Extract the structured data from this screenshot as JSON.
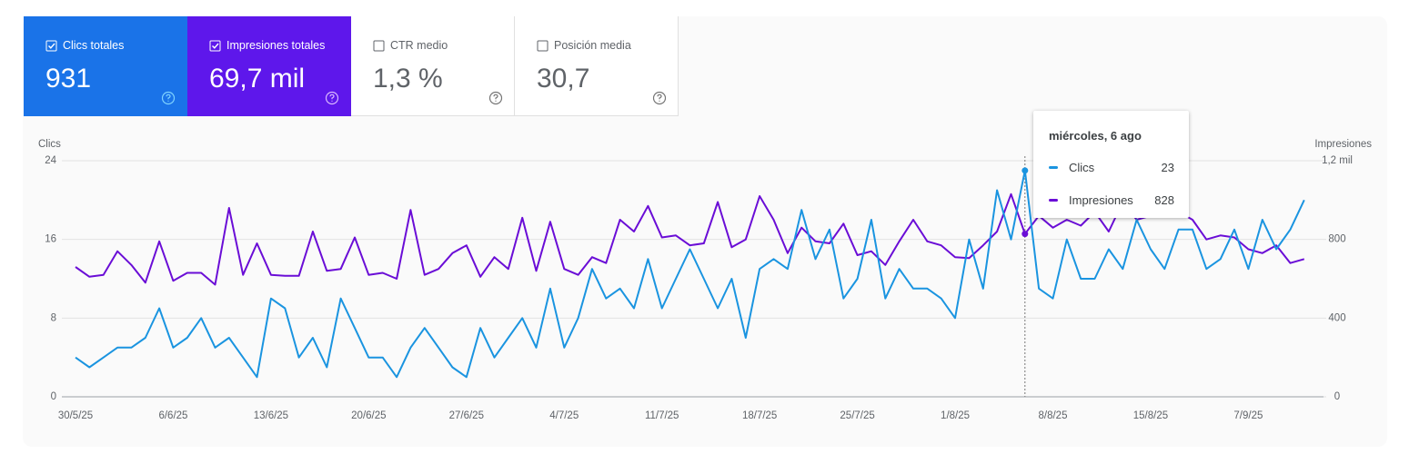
{
  "cards": [
    {
      "label": "Clics totales",
      "value": "931",
      "selected": true,
      "color": "#1a73e8"
    },
    {
      "label": "Impresiones totales",
      "value": "69,7 mil",
      "selected": true,
      "color": "#5e17eb"
    },
    {
      "label": "CTR medio",
      "value": "1,3 %",
      "selected": false
    },
    {
      "label": "Posición media",
      "value": "30,7",
      "selected": false
    }
  ],
  "chart_data": {
    "type": "line",
    "ylabel": "Clics",
    "y2label": "Impresiones",
    "categories": [
      "30/5/25",
      null,
      null,
      null,
      null,
      null,
      null,
      "6/6/25",
      null,
      null,
      null,
      null,
      null,
      null,
      "13/6/25",
      null,
      null,
      null,
      null,
      null,
      null,
      "20/6/25",
      null,
      null,
      null,
      null,
      null,
      null,
      "27/6/25",
      null,
      null,
      null,
      null,
      null,
      null,
      "4/7/25",
      null,
      null,
      null,
      null,
      null,
      null,
      "11/7/25",
      null,
      null,
      null,
      null,
      null,
      null,
      "18/7/25",
      null,
      null,
      null,
      null,
      null,
      null,
      "25/7/25",
      null,
      null,
      null,
      null,
      null,
      null,
      "1/8/25",
      null,
      null,
      null,
      null,
      null,
      null,
      "8/8/25",
      null,
      null,
      null,
      null,
      null,
      null,
      "15/8/25",
      null,
      null,
      null,
      null,
      null,
      null,
      "7/9/25",
      null,
      null,
      null,
      null
    ],
    "series": [
      {
        "name": "Clics",
        "color": "#1a94e0",
        "values": [
          4,
          3,
          4,
          5,
          5,
          6,
          9,
          5,
          6,
          8,
          5,
          6,
          4,
          2,
          10,
          9,
          4,
          6,
          3,
          10,
          7,
          4,
          4,
          2,
          5,
          7,
          5,
          3,
          2,
          7,
          4,
          6,
          8,
          5,
          11,
          5,
          8,
          13,
          10,
          11,
          9,
          14,
          9,
          12,
          15,
          12,
          9,
          12,
          6,
          13,
          14,
          13,
          19,
          14,
          17,
          10,
          12,
          18,
          10,
          13,
          11,
          11,
          10,
          8,
          16,
          11,
          21,
          16,
          23,
          11,
          10,
          16,
          12,
          12,
          15,
          13,
          18,
          15,
          13,
          17,
          17,
          13,
          14,
          17,
          13,
          18,
          15,
          17,
          20
        ]
      },
      {
        "name": "Impresiones",
        "color": "#6a0dd6",
        "axis": "y2",
        "values": [
          660,
          610,
          620,
          740,
          670,
          580,
          790,
          590,
          630,
          630,
          570,
          960,
          620,
          780,
          620,
          615,
          615,
          840,
          640,
          650,
          810,
          620,
          630,
          600,
          950,
          620,
          650,
          730,
          770,
          610,
          710,
          650,
          910,
          640,
          890,
          650,
          620,
          710,
          680,
          900,
          840,
          970,
          810,
          820,
          770,
          780,
          990,
          760,
          800,
          1020,
          900,
          730,
          860,
          790,
          780,
          880,
          720,
          740,
          670,
          790,
          900,
          790,
          770,
          710,
          705,
          770,
          840,
          1030,
          828,
          920,
          860,
          900,
          870,
          940,
          840,
          990,
          900,
          920,
          980,
          940,
          900,
          800,
          820,
          810,
          750,
          730,
          770,
          680,
          700
        ]
      }
    ],
    "ylim": [
      0,
      24
    ],
    "yticks": [
      0,
      8,
      16,
      24
    ],
    "y2lim": [
      0,
      1200
    ],
    "y2ticks": [
      0,
      400,
      800,
      {
        "value": 1200,
        "label": "1,2 mil"
      }
    ],
    "grid": true,
    "tooltip": {
      "title": "miércoles, 6 ago"
    }
  }
}
